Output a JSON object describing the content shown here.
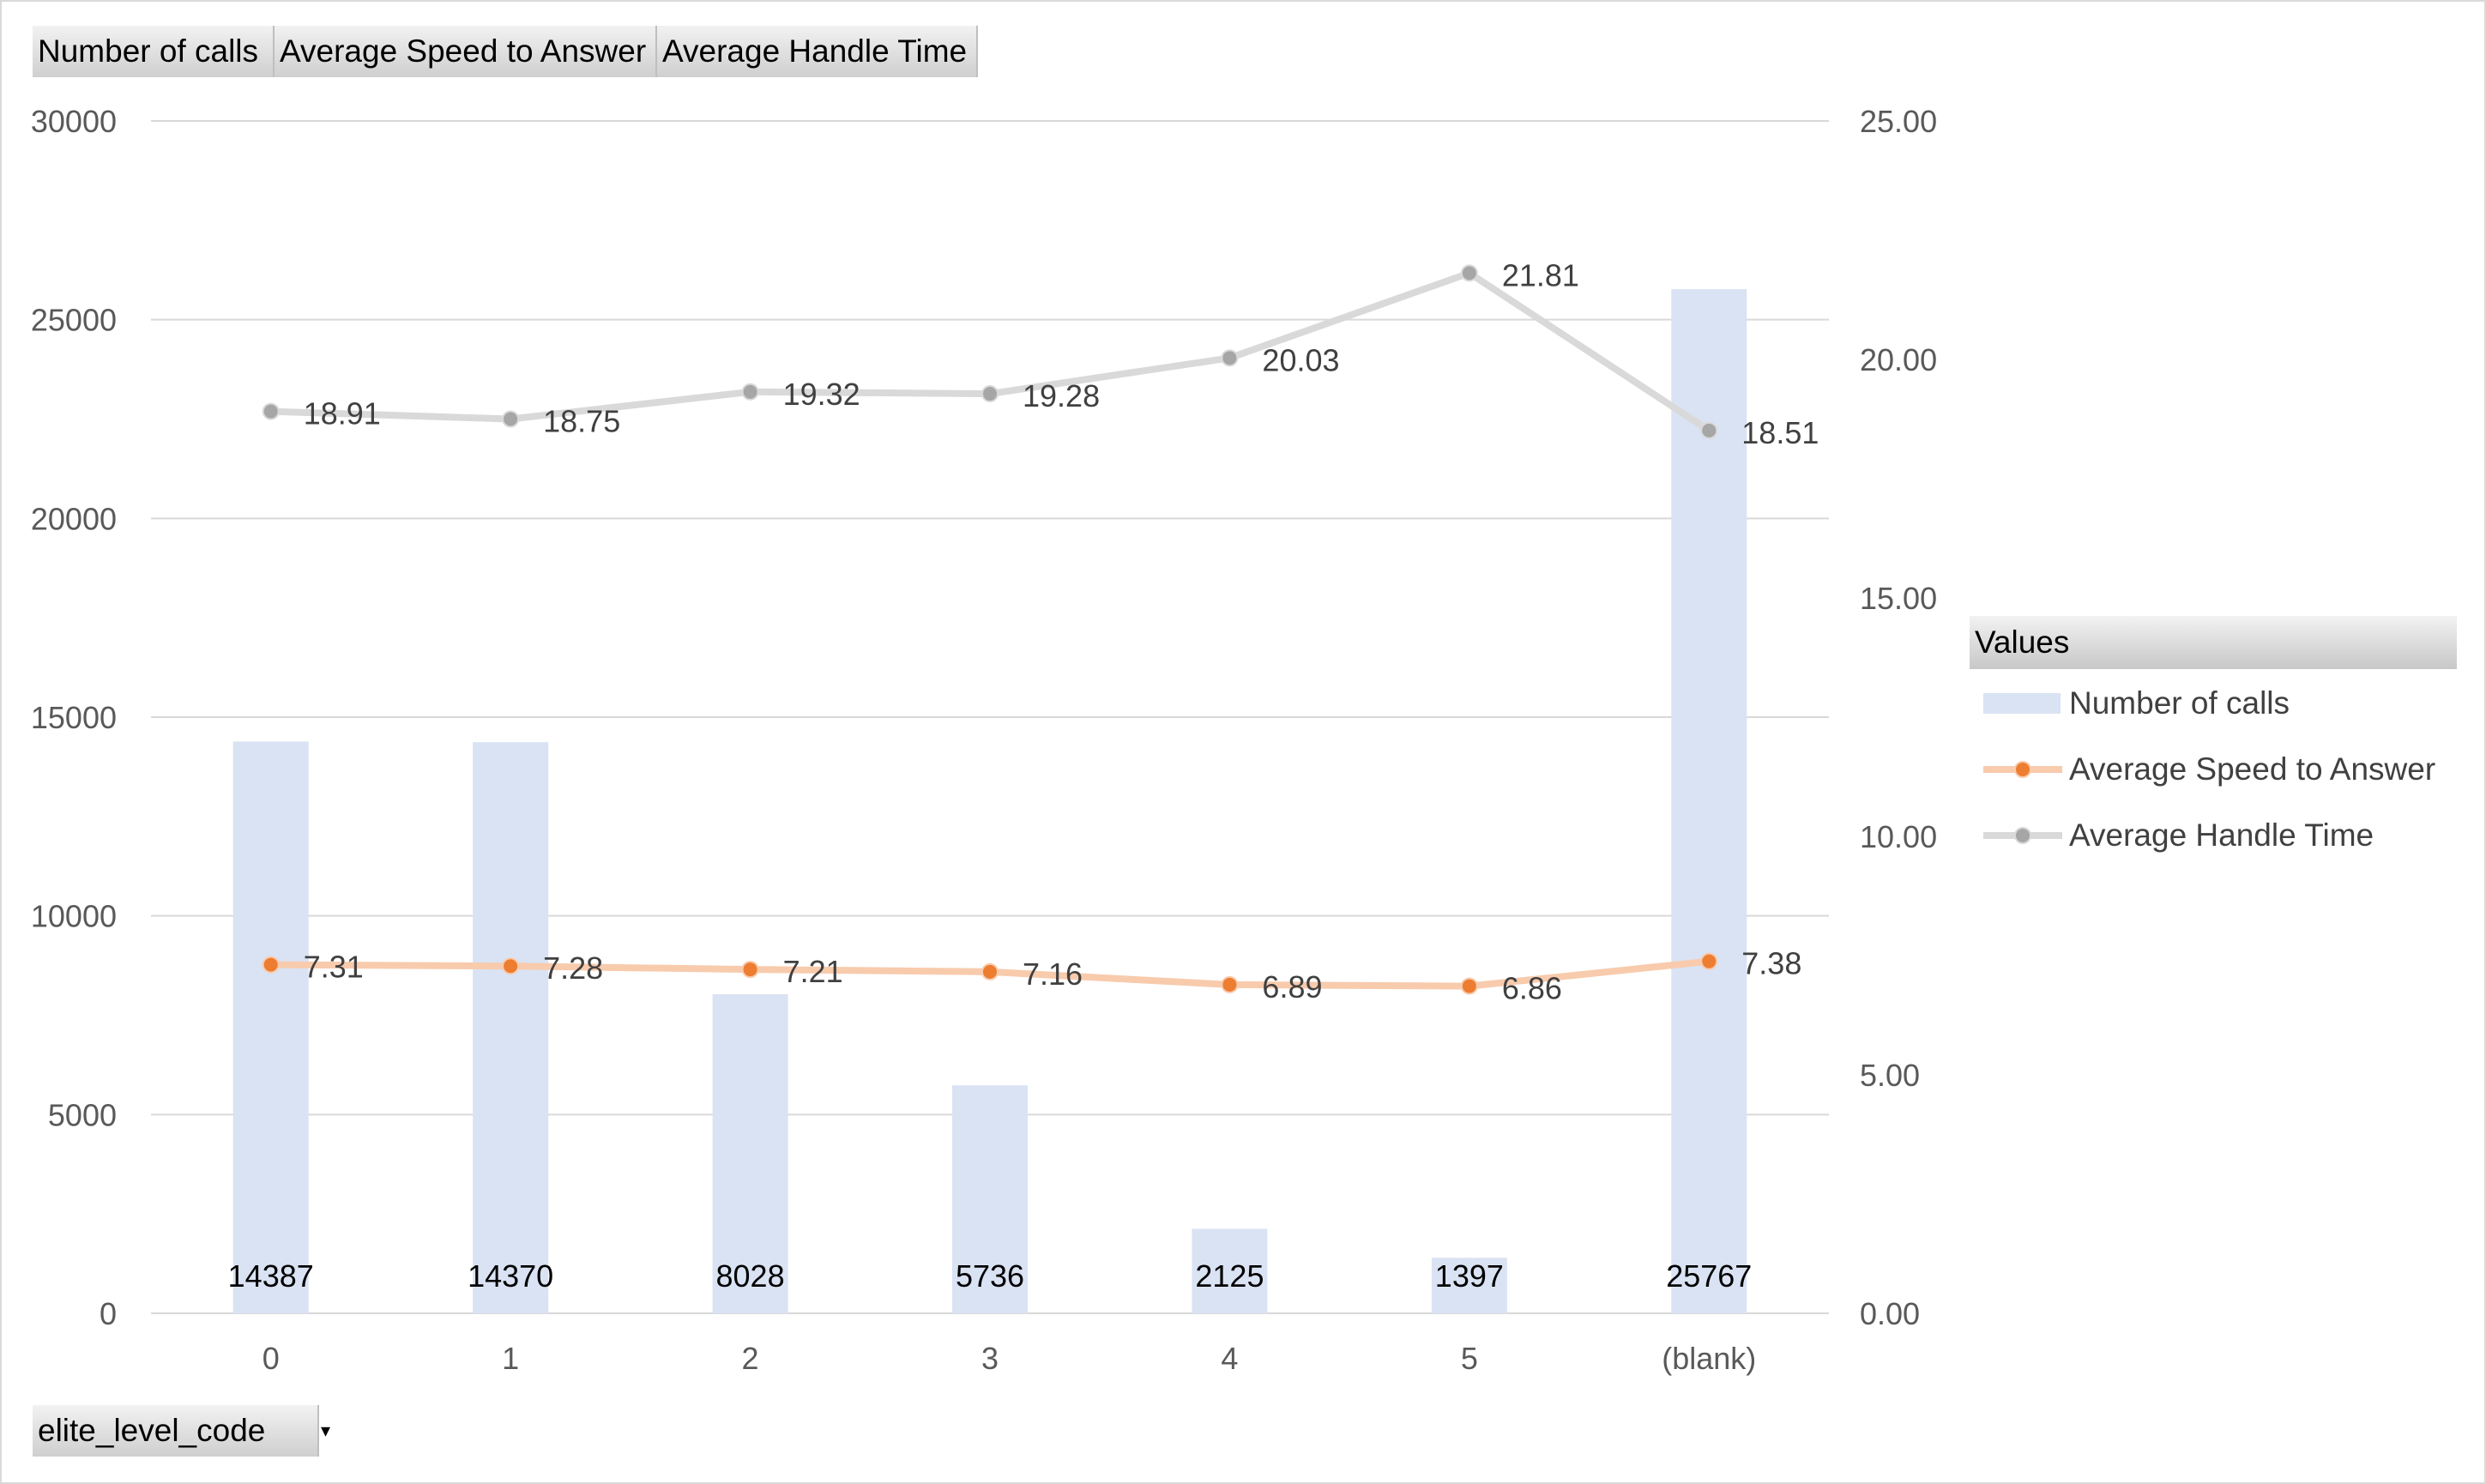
{
  "pivot_buttons": {
    "calls": "Number of calls",
    "asa": "Average Speed to Answer",
    "aht": "Average Handle Time"
  },
  "axis_field_button": {
    "label": "elite_level_code",
    "arrow": "▾"
  },
  "legend": {
    "title": "Values",
    "items": [
      "Number of calls",
      "Average Speed to Answer",
      "Average Handle Time"
    ]
  },
  "colors": {
    "bars": "#dae3f3",
    "asa": "#ed7d31",
    "asa_line": "#f8cbad",
    "aht": "#a6a6a6",
    "aht_line": "#d9d9d9",
    "grid": "#d9d9d9",
    "axis_text": "#595959"
  },
  "chart_data": {
    "type": "bar",
    "categories": [
      "0",
      "1",
      "2",
      "3",
      "4",
      "5",
      "(blank)"
    ],
    "series": [
      {
        "name": "Number of calls",
        "type": "bar",
        "axis": "primary",
        "values": [
          14387,
          14370,
          8028,
          5736,
          2125,
          1397,
          25767
        ],
        "labels": [
          "14387",
          "14370",
          "8028",
          "5736",
          "2125",
          "1397",
          "25767"
        ]
      },
      {
        "name": "Average Speed to Answer",
        "type": "line",
        "axis": "secondary",
        "values": [
          7.31,
          7.28,
          7.21,
          7.16,
          6.89,
          6.86,
          7.38
        ],
        "labels": [
          "7.31",
          "7.28",
          "7.21",
          "7.16",
          "6.89",
          "6.86",
          "7.38"
        ]
      },
      {
        "name": "Average Handle Time",
        "type": "line",
        "axis": "secondary",
        "values": [
          18.91,
          18.75,
          19.32,
          19.28,
          20.03,
          21.81,
          18.51
        ],
        "labels": [
          "18.91",
          "18.75",
          "19.32",
          "19.28",
          "20.03",
          "21.81",
          "18.51"
        ]
      }
    ],
    "ylim": [
      0,
      30000
    ],
    "y_ticks": [
      "0",
      "5000",
      "10000",
      "15000",
      "20000",
      "25000",
      "30000"
    ],
    "y2lim": [
      0,
      25
    ],
    "y2_ticks": [
      "0.00",
      "5.00",
      "10.00",
      "15.00",
      "20.00",
      "25.00"
    ],
    "grid": true,
    "legend_position": "right"
  }
}
